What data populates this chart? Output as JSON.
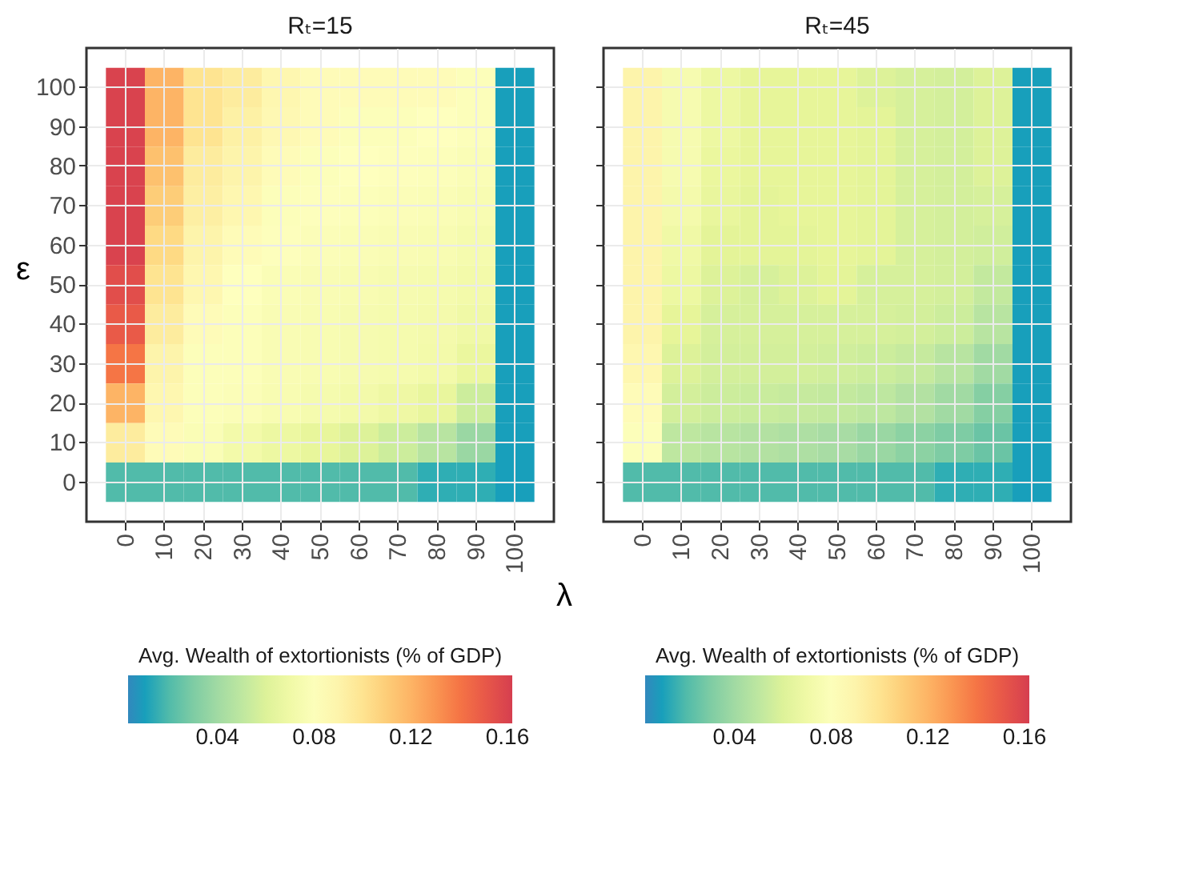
{
  "chart_data": [
    {
      "type": "heatmap",
      "title": "Rₜ=15",
      "xlabel": "λ",
      "ylabel": "ε",
      "clabel": "Avg. Wealth of extortionists (% of GDP)",
      "clim": [
        0.003,
        0.162
      ],
      "cticks": [
        0.04,
        0.08,
        0.12,
        0.16
      ],
      "grid": true,
      "categories": [
        "0",
        "10",
        "20",
        "30",
        "40",
        "50",
        "60",
        "70",
        "80",
        "90",
        "100"
      ],
      "y_categories": [
        "100",
        "90",
        "80",
        "70",
        "60",
        "50",
        "40",
        "30",
        "20",
        "10",
        "0"
      ],
      "cells": [
        [
          0.16,
          0.12,
          0.1,
          0.095,
          0.088,
          0.085,
          0.085,
          0.085,
          0.085,
          0.08,
          0.01
        ],
        [
          0.16,
          0.12,
          0.1,
          0.092,
          0.087,
          0.085,
          0.08,
          0.08,
          0.082,
          0.08,
          0.01
        ],
        [
          0.16,
          0.115,
          0.095,
          0.09,
          0.085,
          0.08,
          0.082,
          0.081,
          0.08,
          0.078,
          0.01
        ],
        [
          0.16,
          0.11,
          0.093,
          0.088,
          0.08,
          0.081,
          0.08,
          0.079,
          0.078,
          0.076,
          0.01
        ],
        [
          0.16,
          0.105,
          0.09,
          0.085,
          0.081,
          0.079,
          0.078,
          0.077,
          0.076,
          0.074,
          0.01
        ],
        [
          0.155,
          0.1,
          0.088,
          0.082,
          0.078,
          0.077,
          0.076,
          0.075,
          0.074,
          0.072,
          0.01
        ],
        [
          0.15,
          0.095,
          0.085,
          0.08,
          0.077,
          0.076,
          0.075,
          0.074,
          0.073,
          0.07,
          0.01
        ],
        [
          0.14,
          0.09,
          0.08,
          0.08,
          0.077,
          0.076,
          0.075,
          0.074,
          0.072,
          0.066,
          0.01
        ],
        [
          0.12,
          0.088,
          0.08,
          0.079,
          0.076,
          0.074,
          0.072,
          0.069,
          0.065,
          0.055,
          0.01
        ],
        [
          0.095,
          0.085,
          0.078,
          0.072,
          0.068,
          0.064,
          0.06,
          0.055,
          0.048,
          0.038,
          0.01
        ],
        [
          0.02,
          0.02,
          0.02,
          0.02,
          0.02,
          0.02,
          0.02,
          0.02,
          0.015,
          0.015,
          0.01
        ]
      ]
    },
    {
      "type": "heatmap",
      "title": "Rₜ=45",
      "tick_labels": "x",
      "grid": true,
      "clabel": "Avg. Wealth of extortionists (% of GDP)",
      "clim": [
        0.003,
        0.162
      ],
      "cticks": [
        0.04,
        0.08,
        0.12,
        0.16
      ],
      "categories": [
        "0",
        "10",
        "20",
        "30",
        "40",
        "50",
        "60",
        "70",
        "80",
        "90",
        "100"
      ],
      "y_categories": [
        "100",
        "90",
        "80",
        "70",
        "60",
        "50",
        "40",
        "30",
        "20",
        "10",
        "0"
      ],
      "cells": [
        [
          0.09,
          0.075,
          0.068,
          0.063,
          0.063,
          0.063,
          0.06,
          0.058,
          0.057,
          0.06,
          0.01
        ],
        [
          0.09,
          0.075,
          0.068,
          0.063,
          0.063,
          0.063,
          0.062,
          0.058,
          0.057,
          0.06,
          0.01
        ],
        [
          0.09,
          0.075,
          0.066,
          0.063,
          0.063,
          0.063,
          0.062,
          0.058,
          0.057,
          0.06,
          0.01
        ],
        [
          0.09,
          0.073,
          0.065,
          0.062,
          0.063,
          0.063,
          0.062,
          0.058,
          0.057,
          0.058,
          0.01
        ],
        [
          0.09,
          0.07,
          0.062,
          0.062,
          0.062,
          0.063,
          0.062,
          0.058,
          0.057,
          0.056,
          0.01
        ],
        [
          0.09,
          0.068,
          0.06,
          0.058,
          0.06,
          0.062,
          0.058,
          0.058,
          0.057,
          0.052,
          0.01
        ],
        [
          0.09,
          0.063,
          0.058,
          0.058,
          0.058,
          0.058,
          0.058,
          0.057,
          0.055,
          0.048,
          0.01
        ],
        [
          0.088,
          0.06,
          0.057,
          0.057,
          0.057,
          0.056,
          0.055,
          0.053,
          0.048,
          0.04,
          0.01
        ],
        [
          0.085,
          0.057,
          0.055,
          0.054,
          0.053,
          0.052,
          0.05,
          0.046,
          0.04,
          0.032,
          0.01
        ],
        [
          0.08,
          0.05,
          0.048,
          0.046,
          0.044,
          0.042,
          0.038,
          0.034,
          0.03,
          0.024,
          0.01
        ],
        [
          0.02,
          0.02,
          0.02,
          0.02,
          0.02,
          0.02,
          0.02,
          0.02,
          0.015,
          0.015,
          0.01
        ]
      ]
    }
  ]
}
